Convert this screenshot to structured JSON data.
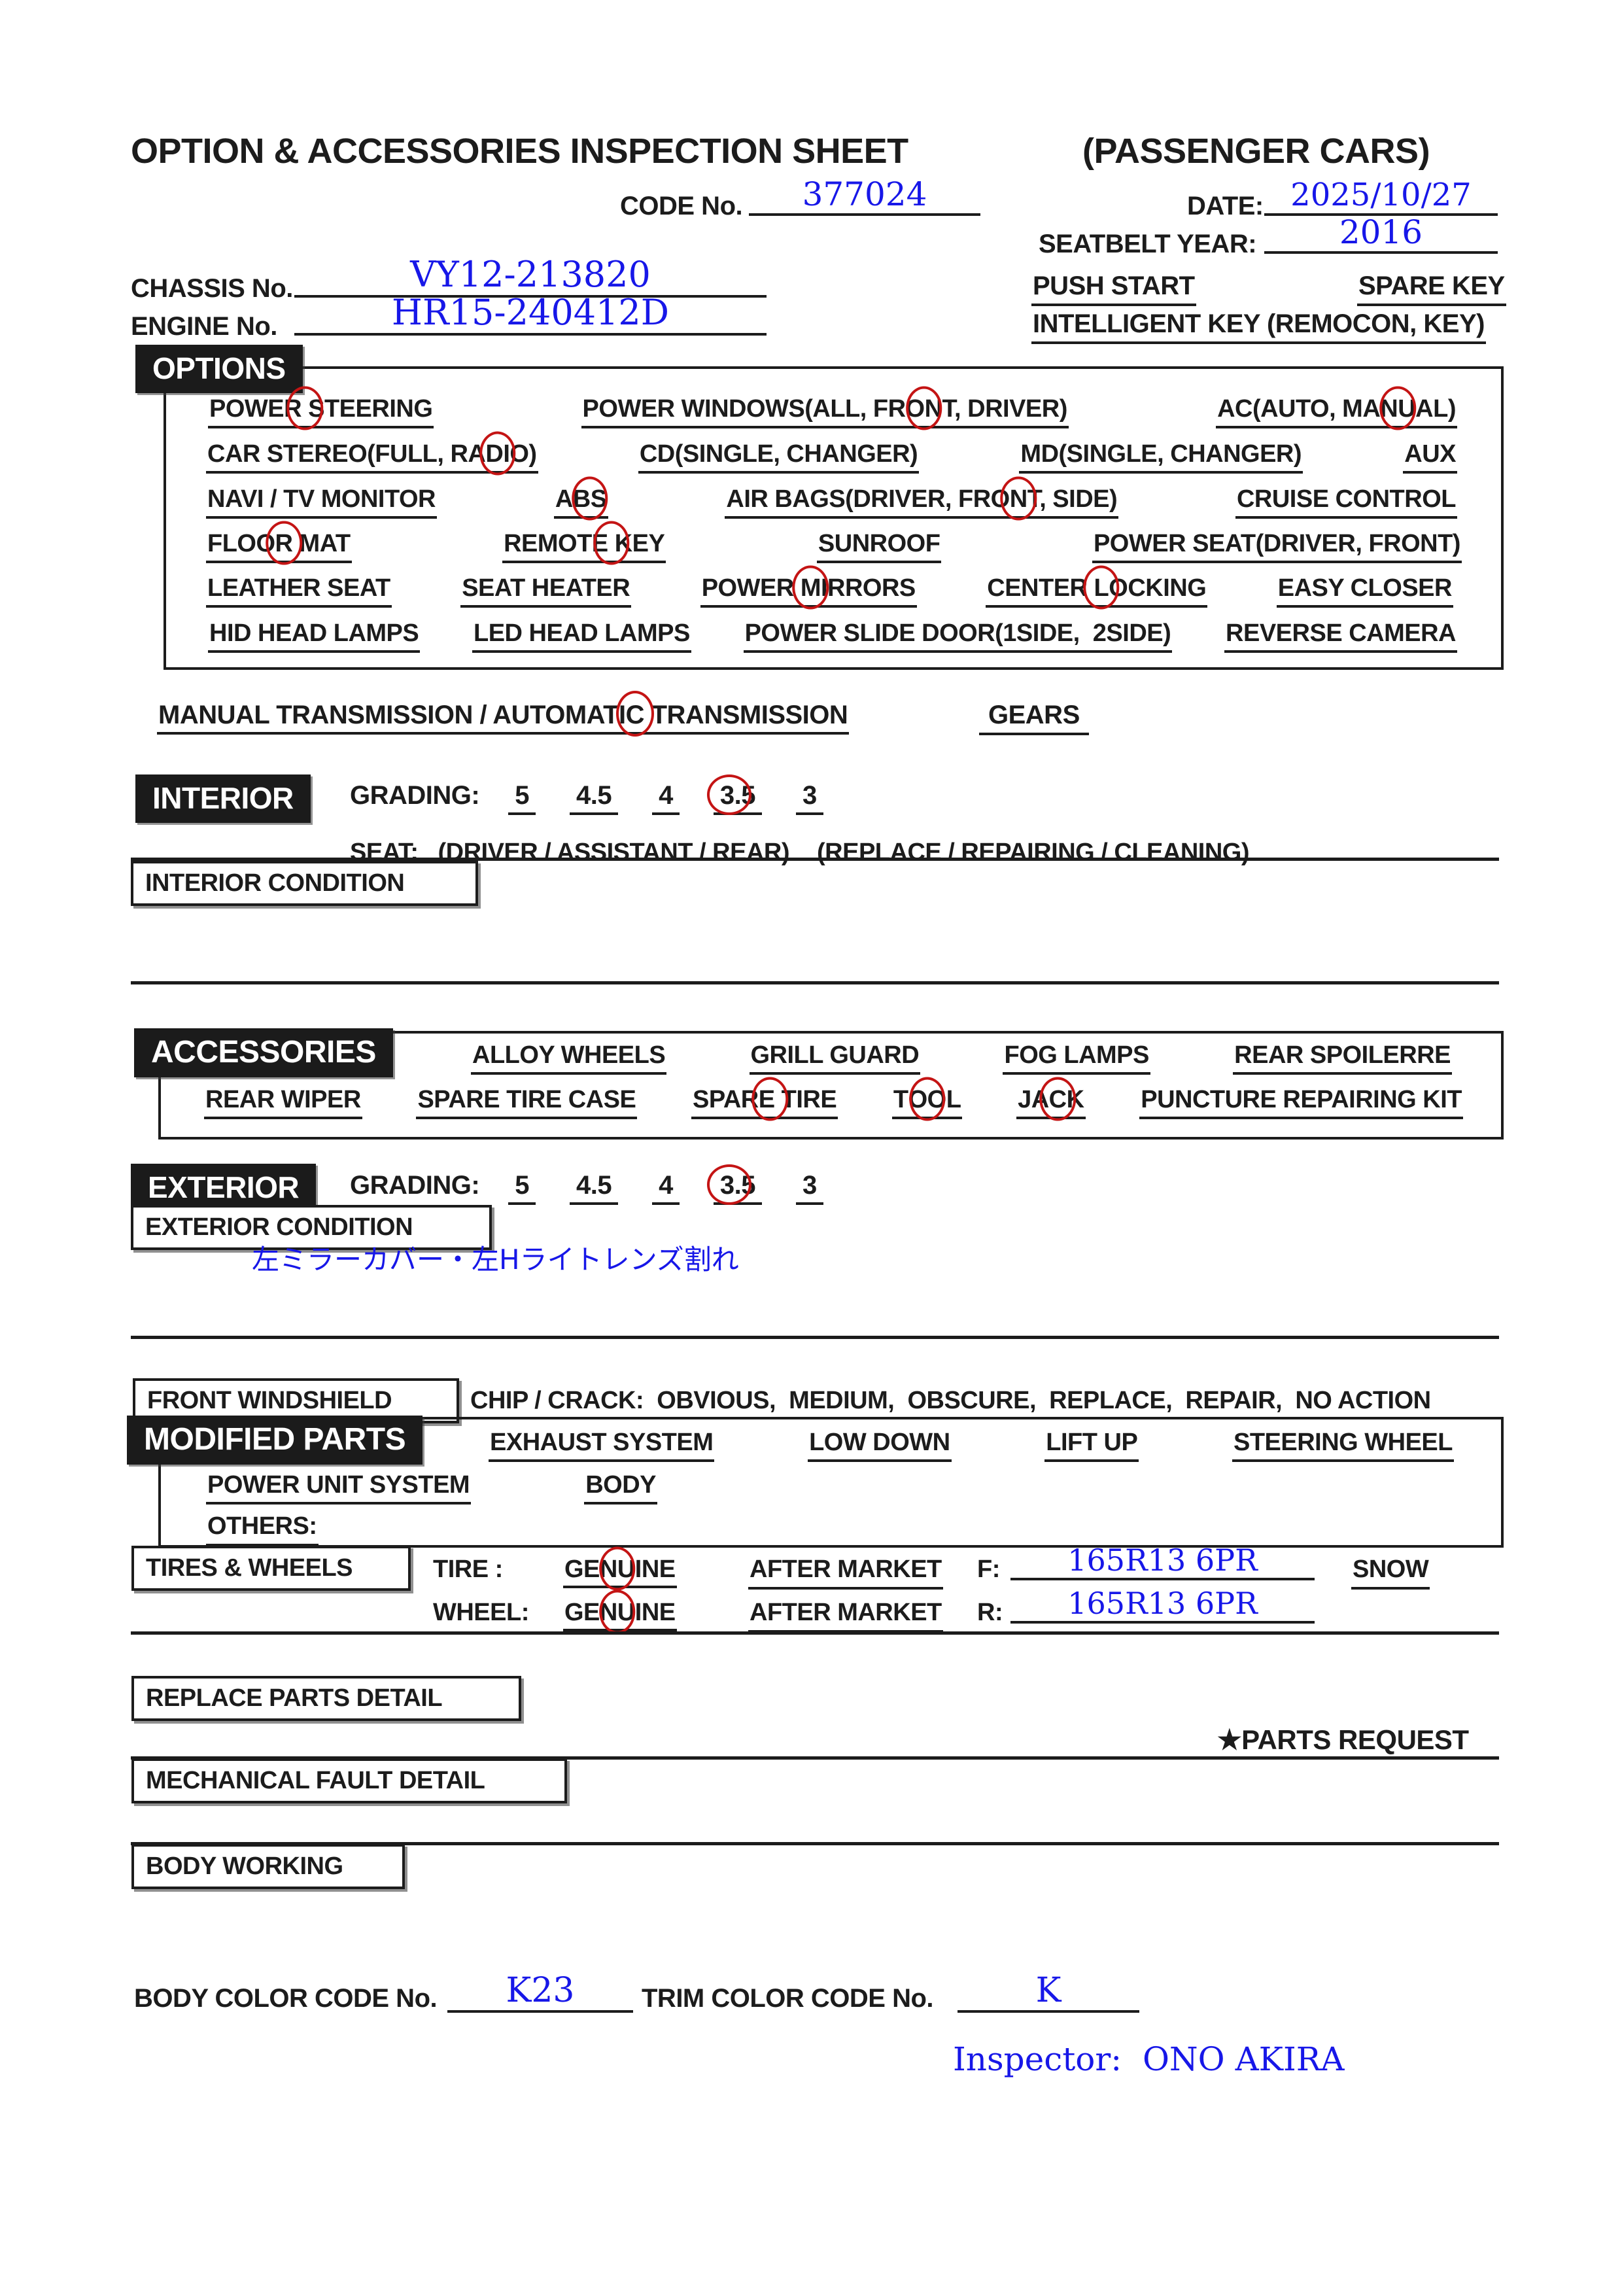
{
  "colors": {
    "handwriting_blue": "#1717e8",
    "mark_red": "#c41414",
    "ink": "#1c1c1c"
  },
  "header": {
    "title": "OPTION & ACCESSORIES INSPECTION SHEET",
    "subtitle": "(PASSENGER CARS)",
    "code_label": "CODE No.",
    "code_value": "377024",
    "date_label": "DATE:",
    "date_value": "2025/10/27",
    "seatbelt_label": "SEATBELT YEAR:",
    "seatbelt_value": "2016",
    "chassis_label": "CHASSIS No.",
    "chassis_value": "VY12-213820",
    "engine_label": "ENGINE No.",
    "engine_value": "HR15-240412D",
    "push_start": "PUSH START",
    "spare_key": "SPARE KEY",
    "intelligent_key": "INTELLIGENT KEY (REMOCON, KEY)"
  },
  "options": {
    "section_label": "OPTIONS",
    "rows": [
      [
        {
          "pre": "POWER",
          "circ": " ",
          "post": "STEERING"
        },
        {
          "pre": "POWER WINDOWS(ALL, FR",
          "circ": "ON",
          "post": "T, DRIVER)"
        },
        {
          "pre": "AC(AUTO, MA",
          "circ": "NU",
          "post": "AL)"
        }
      ],
      [
        {
          "pre": "CAR STEREO(FULL, RA",
          "circ": "DI",
          "post": "O)"
        },
        "CD(SINGLE, CHANGER)",
        "MD(SINGLE, CHANGER)",
        "AUX"
      ],
      [
        "NAVI / TV MONITOR",
        {
          "pre": "A",
          "circ": "BS",
          "post": ""
        },
        {
          "pre": "AIR BAGS(DRIVER, FRO",
          "circ": "N",
          "post": "T, SIDE)"
        },
        "CRUISE CONTROL"
      ],
      [
        {
          "pre": "FLOO",
          "circ": "R",
          "post": " MAT"
        },
        {
          "pre": "REMOTE",
          "circ": " ",
          "post": "KEY"
        },
        "SUNROOF",
        "POWER SEAT(DRIVER, FRONT)"
      ],
      [
        "LEATHER SEAT",
        "SEAT HEATER",
        {
          "pre": "POWER ",
          "circ": "M",
          "post": "IRRORS"
        },
        {
          "pre": "CENTER ",
          "circ": "L",
          "post": "OCKING"
        },
        "EASY CLOSER"
      ],
      [
        "HID HEAD LAMPS",
        "LED HEAD LAMPS",
        "POWER SLIDE DOOR(1SIDE,  2SIDE)",
        "REVERSE CAMERA"
      ]
    ],
    "transmission": {
      "pre": "MANUAL TRANSMISSION / AUTOMATI",
      "circ": "C",
      "post": " TRANSMISSION"
    },
    "gears_label": "GEARS"
  },
  "interior": {
    "section_label": "INTERIOR",
    "grading_label": "GRADING:",
    "grades": [
      {
        "v": "5"
      },
      {
        "v": "4.5"
      },
      {
        "v": "4"
      },
      {
        "v": "3.5",
        "circled": true
      },
      {
        "v": "3"
      }
    ],
    "seat_label": "SEAT:",
    "seat_group1": "(DRIVER / ASSISTANT / REAR)",
    "seat_group2": "(REPLACE / REPAIRING / CLEANING)",
    "condition_label": "INTERIOR CONDITION"
  },
  "accessories": {
    "section_label": "ACCESSORIES",
    "row1": [
      "ALLOY WHEELS",
      "GRILL GUARD",
      "FOG LAMPS",
      "REAR SPOILERRE"
    ],
    "row2": [
      "REAR WIPER",
      "SPARE TIRE CASE",
      {
        "pre": "SPAR",
        "circ": "E ",
        "post": "TIRE"
      },
      {
        "pre": "T",
        "circ": "OO",
        "post": "L"
      },
      {
        "pre": "JA",
        "circ": "C",
        "post": "K"
      },
      "PUNCTURE REPAIRING KIT"
    ]
  },
  "exterior": {
    "section_label": "EXTERIOR",
    "grading_label": "GRADING:",
    "grades": [
      {
        "v": "5"
      },
      {
        "v": "4.5"
      },
      {
        "v": "4"
      },
      {
        "v": "3.5",
        "circled": true
      },
      {
        "v": "3"
      }
    ],
    "condition_label": "EXTERIOR CONDITION",
    "note_jp": "左ミラーカバー・左Hライトレンズ割れ"
  },
  "windshield": {
    "box_label": "FRONT WINDSHIELD",
    "chip_crack_line": "CHIP / CRACK:  OBVIOUS,  MEDIUM,  OBSCURE,  REPLACE,  REPAIR,  NO ACTION"
  },
  "modified": {
    "section_label": "MODIFIED PARTS",
    "row1": [
      "EXHAUST SYSTEM",
      "LOW DOWN",
      "LIFT UP",
      "STEERING WHEEL"
    ],
    "row2": [
      "POWER UNIT SYSTEM",
      "BODY"
    ],
    "others_label": "OTHERS:"
  },
  "tires": {
    "box_label": "TIRES & WHEELS",
    "tire_label": "TIRE :",
    "wheel_label": "WHEEL:",
    "tire_genuine": {
      "pre": "GE",
      "circ": "NU",
      "post": "INE"
    },
    "wheel_genuine": {
      "pre": "GE",
      "circ": "NU",
      "post": "INE"
    },
    "after_market": "AFTER MARKET",
    "front_label": "F:",
    "front_value": "165R13 6PR",
    "rear_label": "R:",
    "rear_value": "165R13 6PR",
    "snow_label": "SNOW"
  },
  "details": {
    "replace_label": "REPLACE PARTS DETAIL",
    "parts_request": "★PARTS REQUEST",
    "mechanical_label": "MECHANICAL FAULT DETAIL",
    "body_working_label": "BODY WORKING"
  },
  "footer": {
    "body_color_label": "BODY COLOR CODE No.",
    "body_color_value": "K23",
    "trim_color_label": "TRIM COLOR CODE No.",
    "trim_color_value": "K",
    "inspector": "Inspector:  ONO AKIRA"
  }
}
